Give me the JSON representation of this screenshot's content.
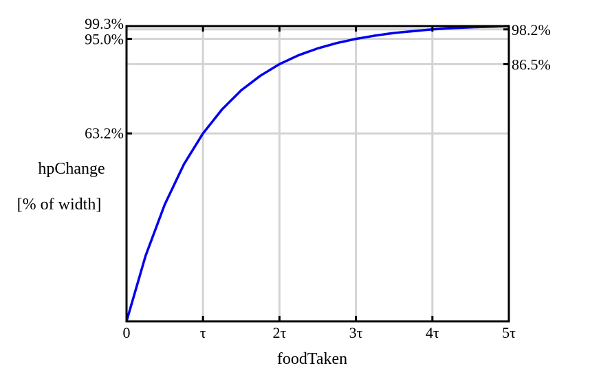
{
  "chart_data": {
    "type": "line",
    "title": "",
    "xlabel": "foodTaken",
    "ylabel_lines": [
      "hpChange",
      "[% of width]"
    ],
    "x_tick_labels": [
      "0",
      "τ",
      "2τ",
      "3τ",
      "4τ",
      "5τ"
    ],
    "x_ticks": [
      0,
      1,
      2,
      3,
      4,
      5
    ],
    "xlim": [
      0,
      5
    ],
    "ylim": [
      0,
      99.3
    ],
    "left_y_ticks": [
      {
        "value": 99.3,
        "label": "99.3%"
      },
      {
        "value": 95.0,
        "label": "95.0%"
      },
      {
        "value": 63.2,
        "label": "63.2%"
      }
    ],
    "right_y_ticks": [
      {
        "value": 98.2,
        "label": "98.2%"
      },
      {
        "value": 86.5,
        "label": "86.5%"
      }
    ],
    "grid": true,
    "series": [
      {
        "color": "#0000ee",
        "x": [
          0,
          0.25,
          0.5,
          0.75,
          1,
          1.25,
          1.5,
          1.75,
          2,
          2.25,
          2.5,
          2.75,
          3,
          3.25,
          3.5,
          3.75,
          4,
          4.25,
          4.5,
          4.75,
          5
        ],
        "y": [
          0,
          22.1,
          39.3,
          52.8,
          63.2,
          71.3,
          77.7,
          82.6,
          86.5,
          89.5,
          91.8,
          93.6,
          95.0,
          96.1,
          97.0,
          97.6,
          98.2,
          98.6,
          98.9,
          99.1,
          99.3
        ]
      }
    ]
  },
  "colors": {
    "curve": "#0000ee",
    "grid": "#d3d3d3",
    "axis": "#000000"
  }
}
